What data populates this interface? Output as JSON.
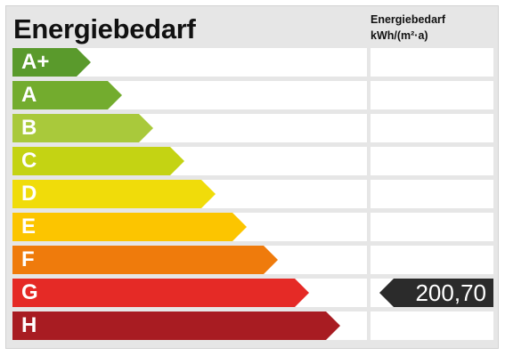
{
  "header": {
    "title": "Energiebedarf",
    "column_title": "Energiebedarf",
    "column_unit": "kWh/(m²·a)"
  },
  "scale": [
    {
      "label": "A+",
      "color": "#5a9a2c"
    },
    {
      "label": "A",
      "color": "#73ac2e"
    },
    {
      "label": "B",
      "color": "#a9c93b"
    },
    {
      "label": "C",
      "color": "#c4d313"
    },
    {
      "label": "D",
      "color": "#f0dc0a"
    },
    {
      "label": "E",
      "color": "#fcc500"
    },
    {
      "label": "F",
      "color": "#ef7b0c"
    },
    {
      "label": "G",
      "color": "#e52a26"
    },
    {
      "label": "H",
      "color": "#a81c22"
    }
  ],
  "marker": {
    "class": "G",
    "value": "200,70",
    "color": "#2b2b2b"
  }
}
